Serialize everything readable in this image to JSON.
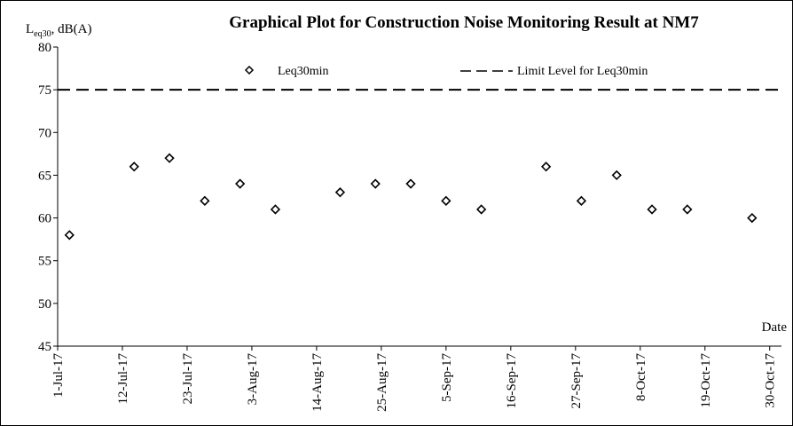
{
  "chart_data": {
    "type": "scatter",
    "title": "Graphical Plot for Construction Noise Monitoring Result at NM7",
    "ylabel_main": "L",
    "ylabel_sub": "eq30",
    "ylabel_rest": ", dB(A)",
    "xlabel": "Date",
    "ylim": [
      45,
      80
    ],
    "yticks": [
      45,
      50,
      55,
      60,
      65,
      70,
      75,
      80
    ],
    "xlim": [
      "2017-07-01",
      "2017-11-01"
    ],
    "xtick_dates": [
      "2017-07-01",
      "2017-07-12",
      "2017-07-23",
      "2017-08-03",
      "2017-08-14",
      "2017-08-25",
      "2017-09-05",
      "2017-09-16",
      "2017-09-27",
      "2017-10-08",
      "2017-10-19",
      "2017-10-30"
    ],
    "xtick_labels": [
      "1-Jul-17",
      "12-Jul-17",
      "23-Jul-17",
      "3-Aug-17",
      "14-Aug-17",
      "25-Aug-17",
      "5-Sep-17",
      "16-Sep-17",
      "27-Sep-17",
      "8-Oct-17",
      "19-Oct-17",
      "30-Oct-17"
    ],
    "series": [
      {
        "name": "Leq30min",
        "marker": "diamond",
        "color": "#000000",
        "points": [
          {
            "x": "2017-07-03",
            "y": 58
          },
          {
            "x": "2017-07-14",
            "y": 66
          },
          {
            "x": "2017-07-20",
            "y": 67
          },
          {
            "x": "2017-07-26",
            "y": 62
          },
          {
            "x": "2017-08-01",
            "y": 64
          },
          {
            "x": "2017-08-07",
            "y": 61
          },
          {
            "x": "2017-08-18",
            "y": 63
          },
          {
            "x": "2017-08-24",
            "y": 64
          },
          {
            "x": "2017-08-30",
            "y": 64
          },
          {
            "x": "2017-09-05",
            "y": 62
          },
          {
            "x": "2017-09-11",
            "y": 61
          },
          {
            "x": "2017-09-22",
            "y": 66
          },
          {
            "x": "2017-09-28",
            "y": 62
          },
          {
            "x": "2017-10-04",
            "y": 65
          },
          {
            "x": "2017-10-10",
            "y": 61
          },
          {
            "x": "2017-10-16",
            "y": 61
          },
          {
            "x": "2017-10-27",
            "y": 60
          }
        ]
      }
    ],
    "limit_line": {
      "name": "Limit Level for Leq30min",
      "value": 75,
      "style": "dashed",
      "color": "#000000"
    },
    "legend_position": "top",
    "grid": false
  }
}
